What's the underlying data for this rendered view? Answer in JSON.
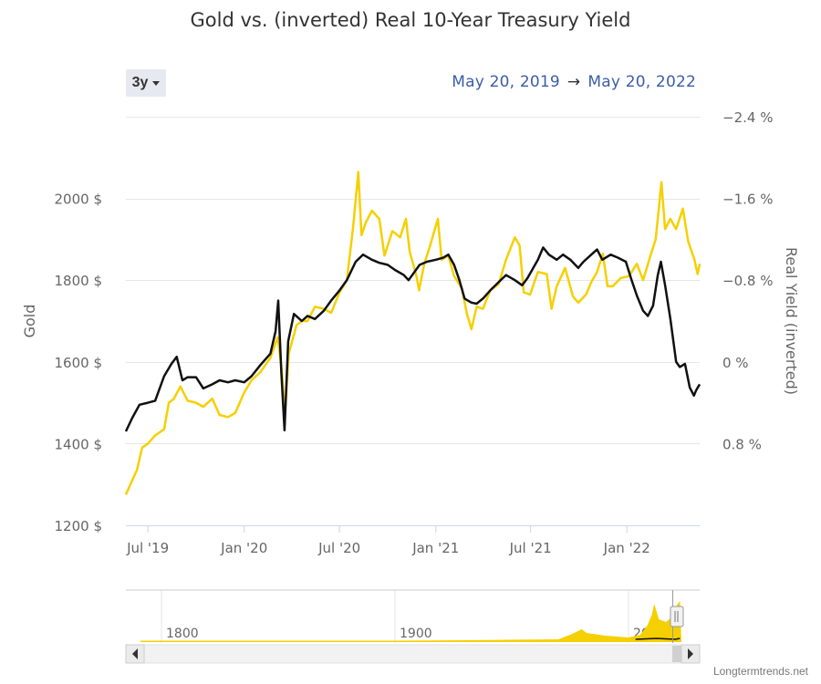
{
  "title": "Gold vs. (inverted) Real 10-Year Treasury Yield",
  "range_selector": {
    "label": "3y"
  },
  "date_range": {
    "from": "May 20, 2019",
    "arrow": "→",
    "to": "May 20, 2022"
  },
  "credit": "Longtermtrends.net",
  "colors": {
    "gold": "#f5d000",
    "yield": "#111111",
    "grid": "#e6e6e6",
    "date_link": "#3b5ea8"
  },
  "chart_data": {
    "type": "line",
    "title": "Gold vs. (inverted) Real 10-Year Treasury Yield",
    "xlabel": "",
    "ylabel_left": "Gold",
    "ylabel_right": "Real Yield (inverted)",
    "x_range": [
      "2019-05-20",
      "2022-05-20"
    ],
    "y_left": {
      "min": 1200,
      "max": 2200,
      "ticks": [
        1200,
        1400,
        1600,
        1800,
        2000
      ],
      "tick_labels": [
        "1200 $",
        "1400 $",
        "1600 $",
        "1800 $",
        "2000 $"
      ]
    },
    "y_right": {
      "inverted": true,
      "min": -2.4,
      "max": 1.6,
      "ticks": [
        -2.4,
        -1.6,
        -0.8,
        0,
        0.8
      ],
      "tick_labels": [
        "−2.4 %",
        "−1.6 %",
        "−0.8 %",
        "0 %",
        "0.8 %"
      ]
    },
    "x_ticks": [
      {
        "date": "2019-07-01",
        "label": "Jul '19"
      },
      {
        "date": "2020-01-01",
        "label": "Jan '20"
      },
      {
        "date": "2020-07-01",
        "label": "Jul '20"
      },
      {
        "date": "2021-01-01",
        "label": "Jan '21"
      },
      {
        "date": "2021-07-01",
        "label": "Jul '21"
      },
      {
        "date": "2022-01-01",
        "label": "Jan '22"
      }
    ],
    "grid": true,
    "legend": "none",
    "series": [
      {
        "axis": "left",
        "color": "#f5d000",
        "points": [
          [
            "2019-05-20",
            1275
          ],
          [
            "2019-06-01",
            1310
          ],
          [
            "2019-06-10",
            1335
          ],
          [
            "2019-06-20",
            1390
          ],
          [
            "2019-07-01",
            1400
          ],
          [
            "2019-07-15",
            1420
          ],
          [
            "2019-08-01",
            1435
          ],
          [
            "2019-08-10",
            1500
          ],
          [
            "2019-08-20",
            1510
          ],
          [
            "2019-09-01",
            1540
          ],
          [
            "2019-09-15",
            1505
          ],
          [
            "2019-10-01",
            1500
          ],
          [
            "2019-10-15",
            1490
          ],
          [
            "2019-11-01",
            1510
          ],
          [
            "2019-11-15",
            1470
          ],
          [
            "2019-12-01",
            1465
          ],
          [
            "2019-12-15",
            1475
          ],
          [
            "2020-01-01",
            1525
          ],
          [
            "2020-01-15",
            1555
          ],
          [
            "2020-02-01",
            1575
          ],
          [
            "2020-02-20",
            1610
          ],
          [
            "2020-03-05",
            1660
          ],
          [
            "2020-03-12",
            1590
          ],
          [
            "2020-03-19",
            1475
          ],
          [
            "2020-03-26",
            1620
          ],
          [
            "2020-04-10",
            1690
          ],
          [
            "2020-04-20",
            1700
          ],
          [
            "2020-05-01",
            1700
          ],
          [
            "2020-05-15",
            1735
          ],
          [
            "2020-06-01",
            1730
          ],
          [
            "2020-06-15",
            1720
          ],
          [
            "2020-07-01",
            1770
          ],
          [
            "2020-07-15",
            1800
          ],
          [
            "2020-07-27",
            1930
          ],
          [
            "2020-08-06",
            2065
          ],
          [
            "2020-08-12",
            1910
          ],
          [
            "2020-08-20",
            1940
          ],
          [
            "2020-09-01",
            1970
          ],
          [
            "2020-09-15",
            1950
          ],
          [
            "2020-09-25",
            1860
          ],
          [
            "2020-10-10",
            1920
          ],
          [
            "2020-10-25",
            1905
          ],
          [
            "2020-11-05",
            1950
          ],
          [
            "2020-11-12",
            1870
          ],
          [
            "2020-11-25",
            1810
          ],
          [
            "2020-11-30",
            1775
          ],
          [
            "2020-12-10",
            1840
          ],
          [
            "2020-12-20",
            1880
          ],
          [
            "2021-01-05",
            1950
          ],
          [
            "2021-01-12",
            1850
          ],
          [
            "2021-01-25",
            1860
          ],
          [
            "2021-02-05",
            1810
          ],
          [
            "2021-02-20",
            1780
          ],
          [
            "2021-03-01",
            1720
          ],
          [
            "2021-03-10",
            1680
          ],
          [
            "2021-03-20",
            1735
          ],
          [
            "2021-04-01",
            1730
          ],
          [
            "2021-04-15",
            1775
          ],
          [
            "2021-05-01",
            1790
          ],
          [
            "2021-05-15",
            1850
          ],
          [
            "2021-06-01",
            1905
          ],
          [
            "2021-06-10",
            1885
          ],
          [
            "2021-06-18",
            1770
          ],
          [
            "2021-06-30",
            1765
          ],
          [
            "2021-07-15",
            1820
          ],
          [
            "2021-08-01",
            1815
          ],
          [
            "2021-08-10",
            1730
          ],
          [
            "2021-08-20",
            1785
          ],
          [
            "2021-09-05",
            1830
          ],
          [
            "2021-09-20",
            1760
          ],
          [
            "2021-09-30",
            1745
          ],
          [
            "2021-10-15",
            1765
          ],
          [
            "2021-10-25",
            1795
          ],
          [
            "2021-11-05",
            1820
          ],
          [
            "2021-11-16",
            1865
          ],
          [
            "2021-11-25",
            1785
          ],
          [
            "2021-12-05",
            1785
          ],
          [
            "2021-12-20",
            1805
          ],
          [
            "2022-01-05",
            1810
          ],
          [
            "2022-01-20",
            1840
          ],
          [
            "2022-02-01",
            1800
          ],
          [
            "2022-02-15",
            1860
          ],
          [
            "2022-02-25",
            1900
          ],
          [
            "2022-03-08",
            2040
          ],
          [
            "2022-03-15",
            1925
          ],
          [
            "2022-03-25",
            1950
          ],
          [
            "2022-04-05",
            1925
          ],
          [
            "2022-04-18",
            1975
          ],
          [
            "2022-04-28",
            1895
          ],
          [
            "2022-05-10",
            1850
          ],
          [
            "2022-05-16",
            1815
          ],
          [
            "2022-05-20",
            1840
          ]
        ]
      },
      {
        "axis": "right",
        "color": "#111111",
        "points": [
          [
            "2019-05-20",
            0.68
          ],
          [
            "2019-06-01",
            0.55
          ],
          [
            "2019-06-15",
            0.42
          ],
          [
            "2019-07-01",
            0.4
          ],
          [
            "2019-07-15",
            0.38
          ],
          [
            "2019-08-01",
            0.14
          ],
          [
            "2019-08-15",
            0.02
          ],
          [
            "2019-08-25",
            -0.05
          ],
          [
            "2019-09-05",
            0.18
          ],
          [
            "2019-09-15",
            0.15
          ],
          [
            "2019-10-01",
            0.15
          ],
          [
            "2019-10-15",
            0.26
          ],
          [
            "2019-11-01",
            0.22
          ],
          [
            "2019-11-15",
            0.18
          ],
          [
            "2019-12-01",
            0.2
          ],
          [
            "2019-12-15",
            0.18
          ],
          [
            "2020-01-01",
            0.2
          ],
          [
            "2020-01-15",
            0.14
          ],
          [
            "2020-02-01",
            0.03
          ],
          [
            "2020-02-20",
            -0.08
          ],
          [
            "2020-03-01",
            -0.3
          ],
          [
            "2020-03-06",
            -0.6
          ],
          [
            "2020-03-12",
            0.1
          ],
          [
            "2020-03-18",
            0.67
          ],
          [
            "2020-03-25",
            -0.2
          ],
          [
            "2020-04-05",
            -0.47
          ],
          [
            "2020-04-20",
            -0.4
          ],
          [
            "2020-05-01",
            -0.45
          ],
          [
            "2020-05-15",
            -0.42
          ],
          [
            "2020-06-01",
            -0.5
          ],
          [
            "2020-06-15",
            -0.6
          ],
          [
            "2020-07-01",
            -0.7
          ],
          [
            "2020-07-15",
            -0.8
          ],
          [
            "2020-08-01",
            -0.98
          ],
          [
            "2020-08-15",
            -1.05
          ],
          [
            "2020-09-01",
            -1.0
          ],
          [
            "2020-09-15",
            -0.97
          ],
          [
            "2020-10-01",
            -0.95
          ],
          [
            "2020-10-15",
            -0.9
          ],
          [
            "2020-11-01",
            -0.85
          ],
          [
            "2020-11-10",
            -0.8
          ],
          [
            "2020-12-01",
            -0.95
          ],
          [
            "2020-12-15",
            -0.98
          ],
          [
            "2021-01-01",
            -1.0
          ],
          [
            "2021-01-15",
            -1.02
          ],
          [
            "2021-01-25",
            -1.05
          ],
          [
            "2021-02-05",
            -0.95
          ],
          [
            "2021-02-15",
            -0.8
          ],
          [
            "2021-02-25",
            -0.62
          ],
          [
            "2021-03-10",
            -0.58
          ],
          [
            "2021-03-20",
            -0.57
          ],
          [
            "2021-04-01",
            -0.62
          ],
          [
            "2021-04-15",
            -0.7
          ],
          [
            "2021-05-01",
            -0.78
          ],
          [
            "2021-05-15",
            -0.85
          ],
          [
            "2021-06-01",
            -0.8
          ],
          [
            "2021-06-15",
            -0.75
          ],
          [
            "2021-06-25",
            -0.82
          ],
          [
            "2021-07-15",
            -1.0
          ],
          [
            "2021-07-25",
            -1.12
          ],
          [
            "2021-08-05",
            -1.05
          ],
          [
            "2021-08-20",
            -1.0
          ],
          [
            "2021-09-01",
            -1.05
          ],
          [
            "2021-09-15",
            -1.0
          ],
          [
            "2021-09-30",
            -0.92
          ],
          [
            "2021-10-10",
            -0.98
          ],
          [
            "2021-10-25",
            -1.05
          ],
          [
            "2021-11-05",
            -1.1
          ],
          [
            "2021-11-15",
            -1.0
          ],
          [
            "2021-12-01",
            -1.05
          ],
          [
            "2021-12-15",
            -1.02
          ],
          [
            "2021-12-30",
            -0.98
          ],
          [
            "2022-01-10",
            -0.8
          ],
          [
            "2022-01-20",
            -0.65
          ],
          [
            "2022-02-01",
            -0.5
          ],
          [
            "2022-02-10",
            -0.45
          ],
          [
            "2022-02-20",
            -0.55
          ],
          [
            "2022-03-01",
            -0.85
          ],
          [
            "2022-03-07",
            -0.98
          ],
          [
            "2022-03-15",
            -0.75
          ],
          [
            "2022-03-25",
            -0.42
          ],
          [
            "2022-04-05",
            0.0
          ],
          [
            "2022-04-12",
            0.05
          ],
          [
            "2022-04-22",
            0.02
          ],
          [
            "2022-05-01",
            0.25
          ],
          [
            "2022-05-09",
            0.33
          ],
          [
            "2022-05-13",
            0.28
          ],
          [
            "2022-05-20",
            0.22
          ]
        ]
      }
    ],
    "navigator": {
      "x_ticks": [
        {
          "year": 1800,
          "label": "1800"
        },
        {
          "year": 1900,
          "label": "1900"
        },
        {
          "year": 2000,
          "label": "2000"
        }
      ]
    }
  }
}
